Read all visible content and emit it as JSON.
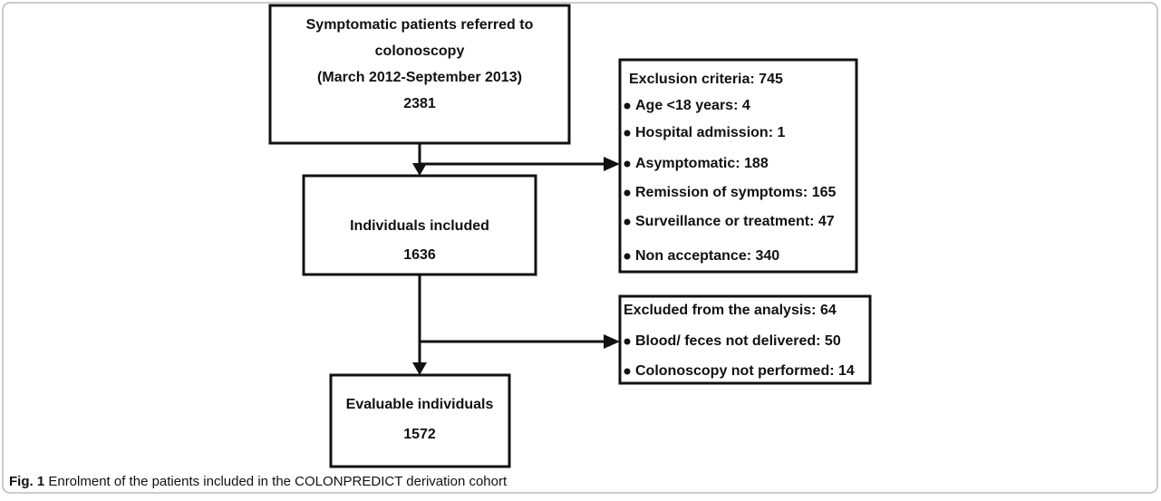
{
  "nodes": [
    {
      "lines": [
        "Symptomatic patients referred to",
        "colonoscopy",
        "(March 2012-September 2013)",
        "2381"
      ]
    },
    {
      "lines": [
        "Individuals included",
        "1636"
      ]
    },
    {
      "lines": [
        "Evaluable individuals",
        "1572"
      ]
    }
  ],
  "exclusions": [
    {
      "title": "Exclusion criteria: 745",
      "items": [
        "Age <18 years: 4",
        "Hospital admission: 1",
        "Asymptomatic: 188",
        "Remission of symptoms: 165",
        "Surveillance or treatment: 47",
        "Non acceptance: 340"
      ]
    },
    {
      "title": "Excluded from the analysis: 64",
      "items": [
        "Blood/ feces not delivered: 50",
        "Colonoscopy not performed: 14"
      ]
    }
  ],
  "caption": {
    "label": "Fig. 1",
    "text": "Enrolment of the patients included in the COLONPREDICT derivation cohort"
  }
}
